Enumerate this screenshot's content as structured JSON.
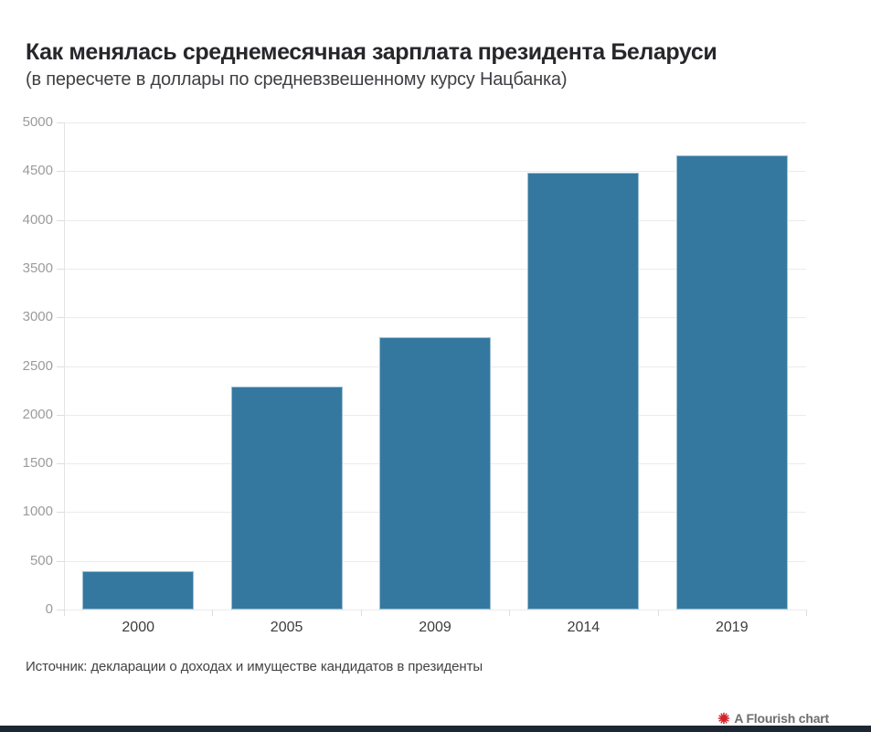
{
  "header": {
    "title": "Как менялась среднемесячная зарплата президента Беларуси",
    "subtitle": "(в пересчете в доллары по средневзвешенному курсу Нацбанка)"
  },
  "chart_data": {
    "type": "bar",
    "categories": [
      "2000",
      "2005",
      "2009",
      "2014",
      "2019"
    ],
    "values": [
      390,
      2290,
      2800,
      4480,
      4660
    ],
    "title": "Как менялась среднемесячная зарплата президента Беларуси",
    "subtitle": "(в пересчете в доллары по средневзвешенному курсу Нацбанка)",
    "xlabel": "",
    "ylabel": "",
    "ylim": [
      0,
      5000
    ],
    "ytick_step": 500,
    "ytick_labels": [
      "0",
      "500",
      "1000",
      "1500",
      "2000",
      "2500",
      "3000",
      "3500",
      "4000",
      "4500",
      "5000"
    ],
    "grid": true,
    "legend_position": "none",
    "bar_color": "#35789f",
    "bar_stroke_color": "#9dc0d5"
  },
  "footer": {
    "source": "Источник: декларации о доходах и имуществе кандидатов в президенты",
    "credit": "A Flourish chart"
  },
  "colors": {
    "background": "#ffffff",
    "title_text": "#26262b",
    "subtitle_text": "#3f3f44",
    "axis_label": "#9b9b9b",
    "category_label": "#3c3c3c",
    "gridline": "#ebebeb",
    "source_text": "#434343",
    "credit_text": "#6e6e6e",
    "credit_icon": "#d0252b",
    "bottom_bar": "#1c2733"
  }
}
